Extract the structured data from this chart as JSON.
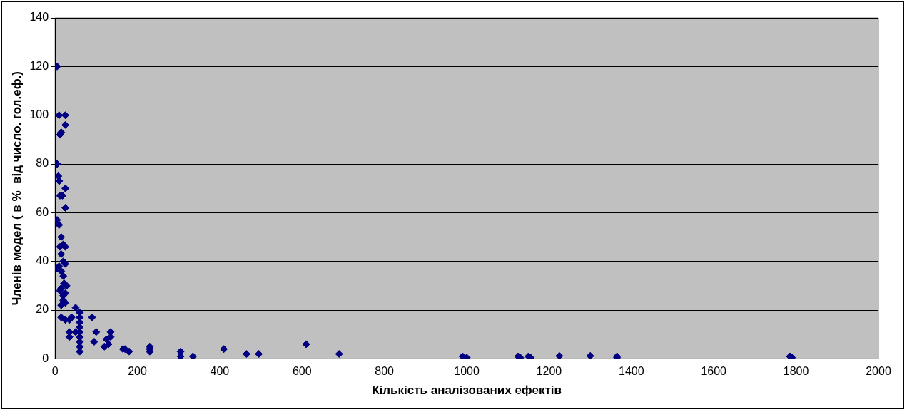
{
  "chart_data": {
    "type": "scatter",
    "xlabel": "Кількість аналізованих ефектів",
    "ylabel": "Членів модел ( в %  від число. гол.еф.)",
    "x": [
      5,
      10,
      25,
      25,
      15,
      12,
      5,
      8,
      10,
      25,
      12,
      18,
      25,
      5,
      10,
      15,
      20,
      25,
      12,
      15,
      20,
      25,
      10,
      5,
      15,
      20,
      22,
      25,
      15,
      12,
      20,
      25,
      15,
      20,
      28,
      15,
      25,
      35,
      40,
      50,
      35,
      35,
      60,
      60,
      60,
      60,
      60,
      60,
      60,
      60,
      60,
      50,
      90,
      100,
      95,
      120,
      125,
      130,
      135,
      135,
      165,
      170,
      180,
      230,
      230,
      230,
      305,
      305,
      335,
      410,
      465,
      495,
      610,
      690,
      990,
      1000,
      1125,
      1130,
      1150,
      1155,
      1225,
      1300,
      1365,
      1365,
      1785,
      1790
    ],
    "series": [
      {
        "color": "#000080",
        "values": [
          120,
          100,
          100,
          96,
          93,
          92,
          80,
          75,
          73,
          70,
          67,
          67,
          62,
          57,
          55,
          50,
          47,
          46,
          46,
          43,
          40,
          39,
          38,
          37,
          36,
          34,
          31,
          27,
          29,
          28,
          26,
          23,
          22,
          24,
          30,
          17,
          16,
          16,
          17,
          21,
          11,
          9,
          19,
          17,
          15,
          13,
          11,
          9,
          7,
          5,
          3,
          11,
          17,
          11,
          7,
          5,
          8,
          6,
          11,
          9,
          4,
          4,
          3,
          5,
          4,
          3,
          3,
          1,
          1,
          4,
          2,
          2,
          6,
          2,
          1,
          0.5,
          1,
          0.5,
          1,
          0.5,
          1.2,
          1.2,
          1,
          0.5,
          1,
          0.5
        ]
      }
    ],
    "xlim": [
      0,
      2000
    ],
    "xticks": [
      0,
      200,
      400,
      600,
      800,
      1000,
      1200,
      1400,
      1600,
      1800,
      2000
    ],
    "ylim": [
      0,
      140
    ],
    "yticks": [
      0,
      20,
      40,
      60,
      80,
      100,
      120,
      140
    ],
    "grid": "y",
    "marker": "diamond",
    "legend": false
  }
}
